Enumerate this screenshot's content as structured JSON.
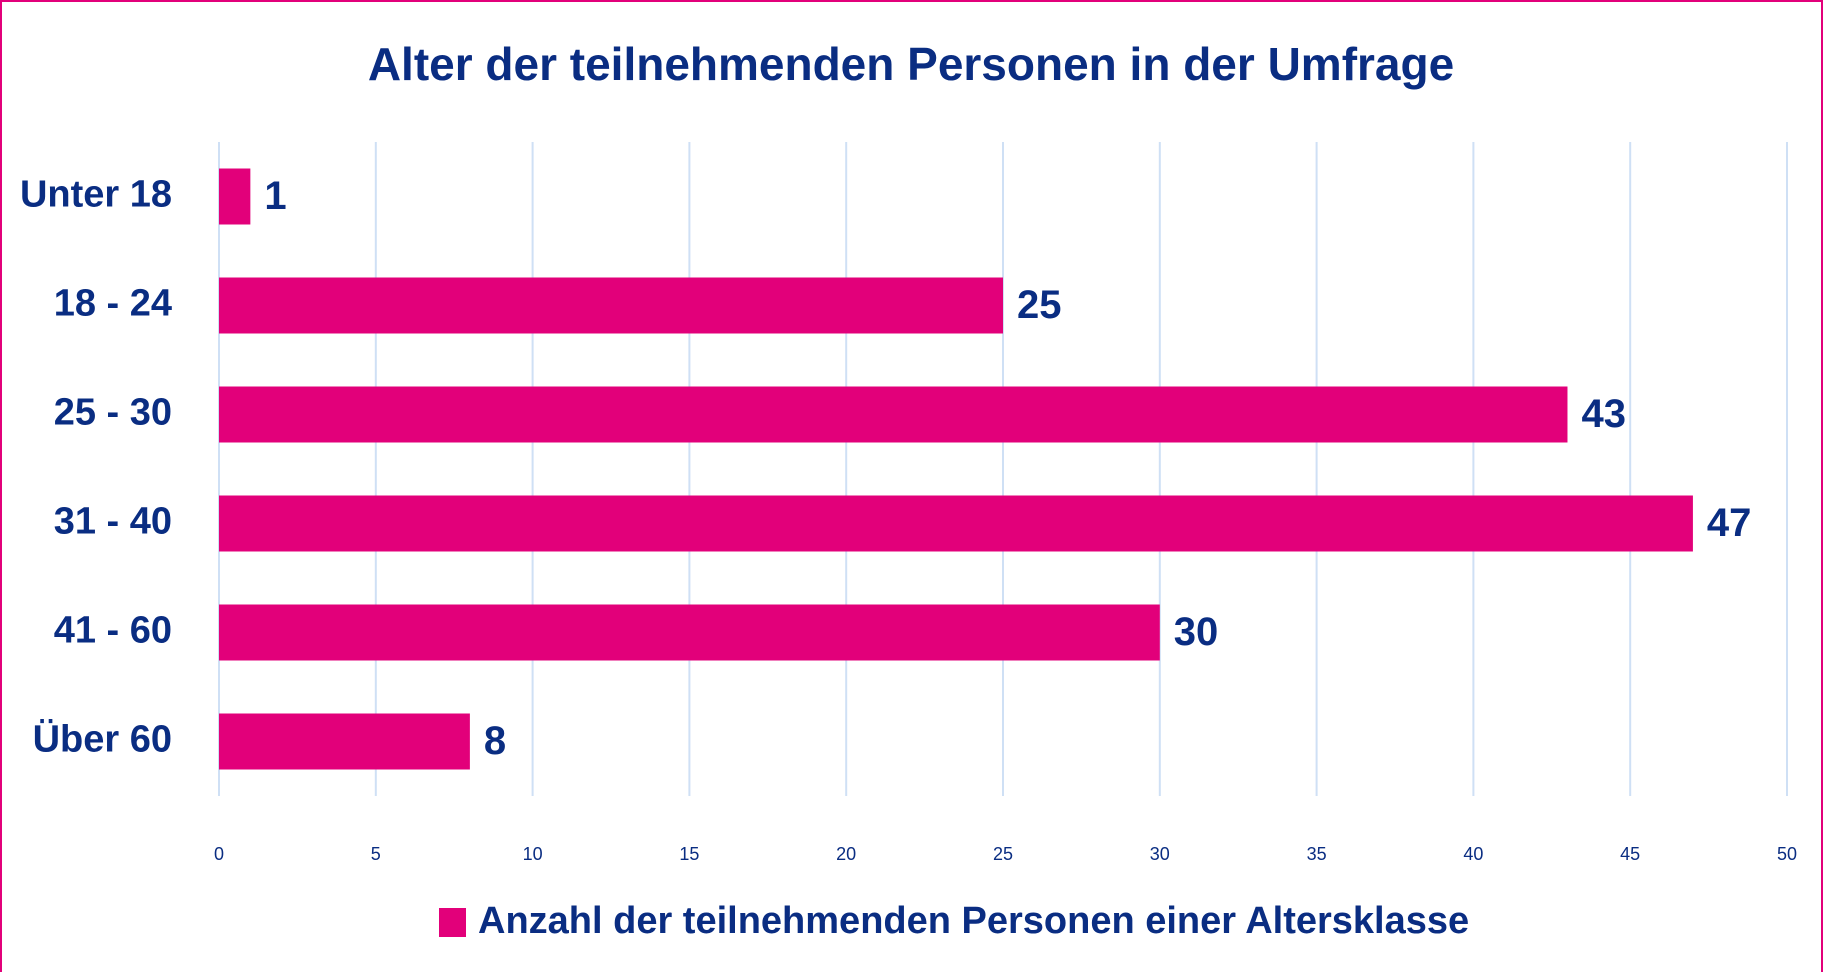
{
  "chart_data": {
    "type": "bar",
    "orientation": "horizontal",
    "title": "Alter der teilnehmenden Personen in der Umfrage",
    "categories": [
      "Unter 18",
      "18 - 24",
      "25 - 30",
      "31 - 40",
      "41 - 60",
      "Über 60"
    ],
    "series": [
      {
        "name": "Anzahl der teilnehmenden Personen einer Altersklasse",
        "color": "#e2007a",
        "values": [
          1,
          25,
          43,
          47,
          30,
          8
        ]
      }
    ],
    "xlim": [
      0,
      50
    ],
    "xticks": [
      0,
      5,
      10,
      15,
      20,
      25,
      30,
      35,
      40,
      45,
      50
    ],
    "grid": true,
    "legend": "bottom"
  }
}
